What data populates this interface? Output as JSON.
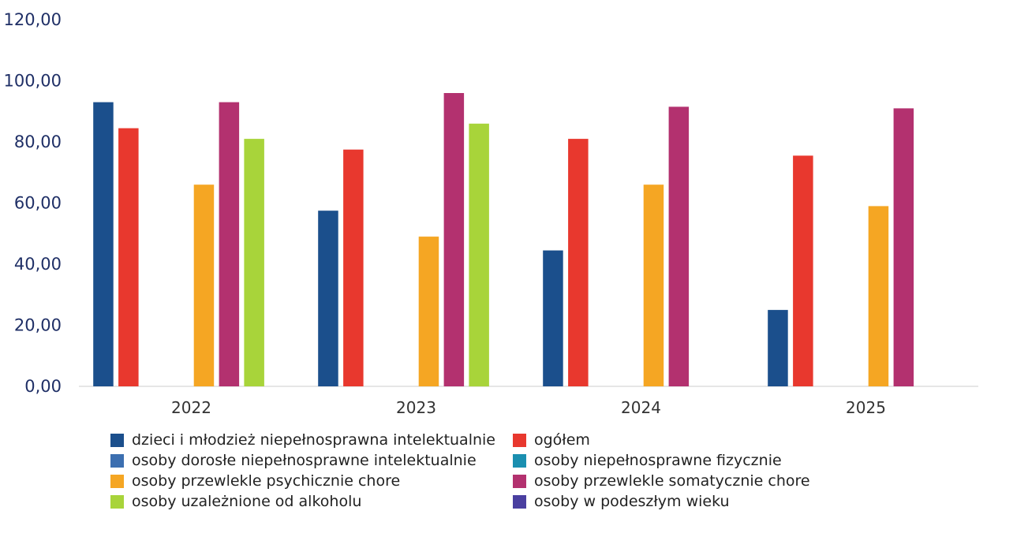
{
  "chart_data": {
    "type": "bar",
    "categories": [
      "2022",
      "2023",
      "2024",
      "2025"
    ],
    "ylim": [
      0,
      120
    ],
    "yticks": [
      "0,00",
      "20,00",
      "40,00",
      "60,00",
      "80,00",
      "100,00",
      "120,00"
    ],
    "legend_position": "bottom",
    "grid": false,
    "series": [
      {
        "name": "dzieci i młodzież niepełnosprawna intelektualnie",
        "color": "#1b4f8c",
        "values": [
          93,
          57.5,
          44.5,
          25
        ]
      },
      {
        "name": "ogółem",
        "color": "#e8382e",
        "values": [
          84.5,
          77.5,
          81,
          75.5
        ]
      },
      {
        "name": "osoby dorosłe niepełnosprawne intelektualnie",
        "color": "#3c6fb0",
        "values": [
          null,
          null,
          null,
          null
        ]
      },
      {
        "name": "osoby niepełnosprawne fizycznie",
        "color": "#1a8fb0",
        "values": [
          null,
          null,
          null,
          null
        ]
      },
      {
        "name": "osoby przewlekle psychicznie chore",
        "color": "#f5a623",
        "values": [
          66,
          49,
          66,
          59
        ]
      },
      {
        "name": "osoby przewlekle somatycznie chore",
        "color": "#b3316f",
        "values": [
          93,
          96,
          91.5,
          91
        ]
      },
      {
        "name": "osoby uzależnione od alkoholu",
        "color": "#a8d43a",
        "values": [
          81,
          86,
          null,
          null
        ]
      },
      {
        "name": "osoby w podeszłym wieku",
        "color": "#4a3fa0",
        "values": [
          null,
          null,
          null,
          null
        ]
      }
    ]
  },
  "legend": {
    "left": [
      {
        "label": "dzieci i młodzież niepełnosprawna intelektualnie",
        "color": "#1b4f8c"
      },
      {
        "label": "osoby dorosłe niepełnosprawne intelektualnie",
        "color": "#3c6fb0"
      },
      {
        "label": "osoby przewlekle psychicznie chore",
        "color": "#f5a623"
      },
      {
        "label": "osoby uzależnione od alkoholu",
        "color": "#a8d43a"
      }
    ],
    "right": [
      {
        "label": "ogółem",
        "color": "#e8382e"
      },
      {
        "label": "osoby niepełnosprawne fizycznie",
        "color": "#1a8fb0"
      },
      {
        "label": "osoby przewlekle somatycznie chore",
        "color": "#b3316f"
      },
      {
        "label": "osoby w podeszłym wieku",
        "color": "#4a3fa0"
      }
    ]
  }
}
